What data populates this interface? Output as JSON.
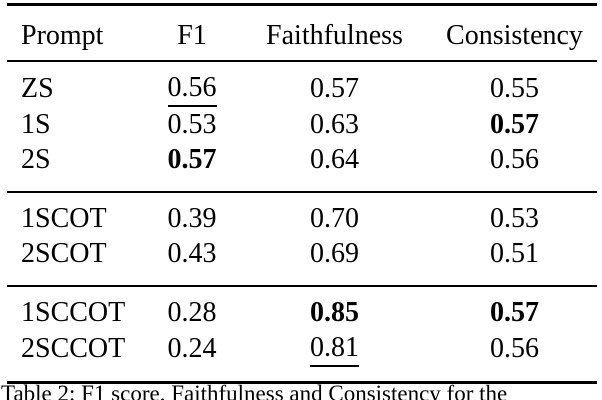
{
  "colors": {
    "text": "#000000",
    "background": "#ffffff"
  },
  "table": {
    "headers": [
      "Prompt",
      "F1",
      "Faithfulness",
      "Consistency"
    ],
    "rows": [
      {
        "prompt": "ZS",
        "f1": {
          "value": "0.56",
          "style": "underline"
        },
        "faithfulness": {
          "value": "0.57",
          "style": ""
        },
        "consistency": {
          "value": "0.55",
          "style": ""
        }
      },
      {
        "prompt": "1S",
        "f1": {
          "value": "0.53",
          "style": ""
        },
        "faithfulness": {
          "value": "0.63",
          "style": ""
        },
        "consistency": {
          "value": "0.57",
          "style": "bold"
        }
      },
      {
        "prompt": "2S",
        "f1": {
          "value": "0.57",
          "style": "bold"
        },
        "faithfulness": {
          "value": "0.64",
          "style": ""
        },
        "consistency": {
          "value": "0.56",
          "style": ""
        }
      },
      {
        "prompt": "1SCOT",
        "f1": {
          "value": "0.39",
          "style": ""
        },
        "faithfulness": {
          "value": "0.70",
          "style": ""
        },
        "consistency": {
          "value": "0.53",
          "style": ""
        }
      },
      {
        "prompt": "2SCOT",
        "f1": {
          "value": "0.43",
          "style": ""
        },
        "faithfulness": {
          "value": "0.69",
          "style": ""
        },
        "consistency": {
          "value": "0.51",
          "style": ""
        }
      },
      {
        "prompt": "1SCCOT",
        "f1": {
          "value": "0.28",
          "style": ""
        },
        "faithfulness": {
          "value": "0.85",
          "style": "bold"
        },
        "consistency": {
          "value": "0.57",
          "style": "bold"
        }
      },
      {
        "prompt": "2SCCOT",
        "f1": {
          "value": "0.24",
          "style": ""
        },
        "faithfulness": {
          "value": "0.81",
          "style": "underline"
        },
        "consistency": {
          "value": "0.56",
          "style": ""
        }
      }
    ]
  },
  "caption": "Table 2: F1 score, Faithfulness and Consistency for the"
}
